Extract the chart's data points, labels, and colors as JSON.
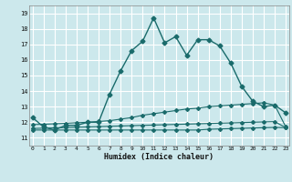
{
  "xlabel": "Humidex (Indice chaleur)",
  "bg_color": "#cce8ec",
  "grid_color": "#ffffff",
  "line_color": "#1a6b6b",
  "x_ticks": [
    0,
    1,
    2,
    3,
    4,
    5,
    6,
    7,
    8,
    9,
    10,
    11,
    12,
    13,
    14,
    15,
    16,
    17,
    18,
    19,
    20,
    21,
    22,
    23
  ],
  "y_ticks": [
    11,
    12,
    13,
    14,
    15,
    16,
    17,
    18,
    19
  ],
  "xlim": [
    -0.3,
    23.3
  ],
  "ylim": [
    10.5,
    19.5
  ],
  "series1_x": [
    0,
    1,
    2,
    3,
    4,
    5,
    6,
    7,
    8,
    9,
    10,
    11,
    12,
    13,
    14,
    15,
    16,
    17,
    18,
    19,
    20,
    21,
    22,
    23
  ],
  "series1_y": [
    12.3,
    11.7,
    11.5,
    11.8,
    11.8,
    12.0,
    12.0,
    13.8,
    15.3,
    16.6,
    17.2,
    18.7,
    17.1,
    17.5,
    16.3,
    17.3,
    17.3,
    16.9,
    15.8,
    14.3,
    13.35,
    13.0,
    13.1,
    12.6
  ],
  "series2_x": [
    0,
    1,
    2,
    3,
    4,
    5,
    6,
    7,
    8,
    9,
    10,
    11,
    12,
    13,
    14,
    15,
    16,
    17,
    18,
    19,
    20,
    21,
    22,
    23
  ],
  "series2_y": [
    11.85,
    11.87,
    11.9,
    11.93,
    11.97,
    12.0,
    12.05,
    12.1,
    12.2,
    12.3,
    12.45,
    12.55,
    12.65,
    12.75,
    12.85,
    12.9,
    13.0,
    13.05,
    13.1,
    13.15,
    13.2,
    13.25,
    13.1,
    11.7
  ],
  "series3_x": [
    0,
    1,
    2,
    3,
    4,
    5,
    6,
    7,
    8,
    9,
    10,
    11,
    12,
    13,
    14,
    15,
    16,
    17,
    18,
    19,
    20,
    21,
    22,
    23
  ],
  "series3_y": [
    11.6,
    11.62,
    11.64,
    11.66,
    11.68,
    11.7,
    11.72,
    11.74,
    11.76,
    11.78,
    11.8,
    11.82,
    11.84,
    11.86,
    11.88,
    11.9,
    11.92,
    11.94,
    11.96,
    11.98,
    12.0,
    12.02,
    12.04,
    11.65
  ],
  "series4_x": [
    0,
    1,
    2,
    3,
    4,
    5,
    6,
    7,
    8,
    9,
    10,
    11,
    12,
    13,
    14,
    15,
    16,
    17,
    18,
    19,
    20,
    21,
    22,
    23
  ],
  "series4_y": [
    11.5,
    11.5,
    11.5,
    11.5,
    11.5,
    11.5,
    11.5,
    11.5,
    11.5,
    11.5,
    11.5,
    11.5,
    11.5,
    11.5,
    11.5,
    11.5,
    11.55,
    11.57,
    11.59,
    11.61,
    11.63,
    11.65,
    11.67,
    11.65
  ]
}
